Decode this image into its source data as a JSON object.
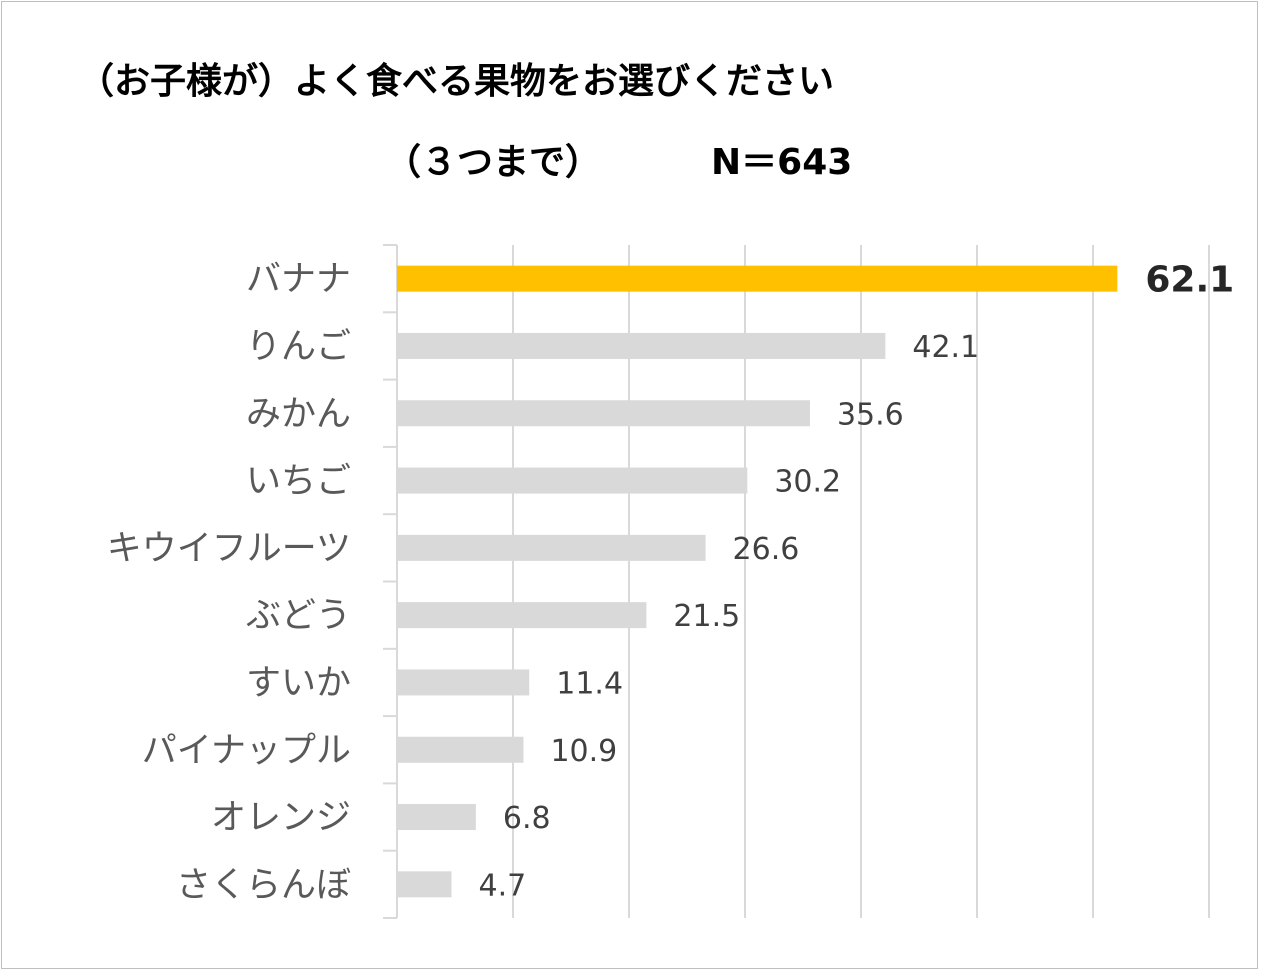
{
  "chart_data": {
    "type": "bar",
    "orientation": "horizontal",
    "title": "（お子様が）よく食べる果物をお選びください",
    "subtitle": "（３つまで）",
    "sample_size": "N＝643",
    "categories": [
      "バナナ",
      "りんご",
      "みかん",
      "いちご",
      "キウイフルーツ",
      "ぶどう",
      "すいか",
      "パイナップル",
      "オレンジ",
      "さくらんぼ"
    ],
    "values": [
      62.1,
      42.1,
      35.6,
      30.2,
      26.6,
      21.5,
      11.4,
      10.9,
      6.8,
      4.7
    ],
    "value_labels": [
      "62.1",
      "42.1",
      "35.6",
      "30.2",
      "26.6",
      "21.5",
      "11.4",
      "10.9",
      "6.8",
      "4.7"
    ],
    "highlight_index": 0,
    "xlim": [
      0,
      70
    ],
    "grid": true,
    "xlabel": "",
    "ylabel": ""
  },
  "colors": {
    "highlight": "#ffc000",
    "bar": "#d9d9d9",
    "grid": "#d9d9d9"
  }
}
